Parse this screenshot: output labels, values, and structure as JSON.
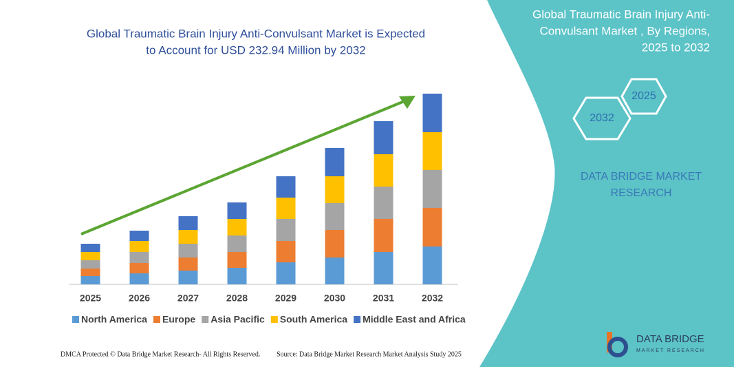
{
  "chart_data": {
    "type": "stacked-bar",
    "title": [
      "Global Traumatic Brain Injury Anti-Convulsant Market is Expected",
      "to Account for USD 232.94 Million by 2032"
    ],
    "categories": [
      "2025",
      "2026",
      "2027",
      "2028",
      "2029",
      "2030",
      "2031",
      "2032"
    ],
    "series": [
      {
        "name": "North America",
        "color": "#5b9bd5",
        "values": [
          12,
          16,
          20,
          24,
          32,
          39,
          47,
          55
        ]
      },
      {
        "name": "Europe",
        "color": "#ed7d31",
        "values": [
          11,
          15,
          19,
          23,
          31,
          40,
          48,
          56
        ]
      },
      {
        "name": "Asia Pacific",
        "color": "#a5a5a5",
        "values": [
          12,
          16,
          20,
          24,
          32,
          39,
          47,
          55
        ]
      },
      {
        "name": "South America",
        "color": "#ffc000",
        "values": [
          12,
          16,
          20,
          24,
          31,
          39,
          47,
          55
        ]
      },
      {
        "name": "Middle East and Africa",
        "color": "#4472c4",
        "values": [
          12,
          15,
          20,
          24,
          31,
          41,
          48,
          56
        ]
      }
    ]
  },
  "panel": {
    "title": [
      "Global Traumatic Brain Injury Anti-",
      "Convulsant Market , By Regions,",
      "2025 to 2032"
    ],
    "hex_labels": [
      "2025",
      "2032"
    ],
    "brand": [
      "DATA BRIDGE MARKET",
      "RESEARCH"
    ]
  },
  "logo": {
    "name": "DATA BRIDGE",
    "tagline": "MARKET RESEARCH"
  },
  "footer": {
    "left": "DMCA Protected © Data Bridge Market Research- All Rights Reserved.",
    "right": "Source: Data Bridge Market Research Market Analysis Study 2025"
  }
}
